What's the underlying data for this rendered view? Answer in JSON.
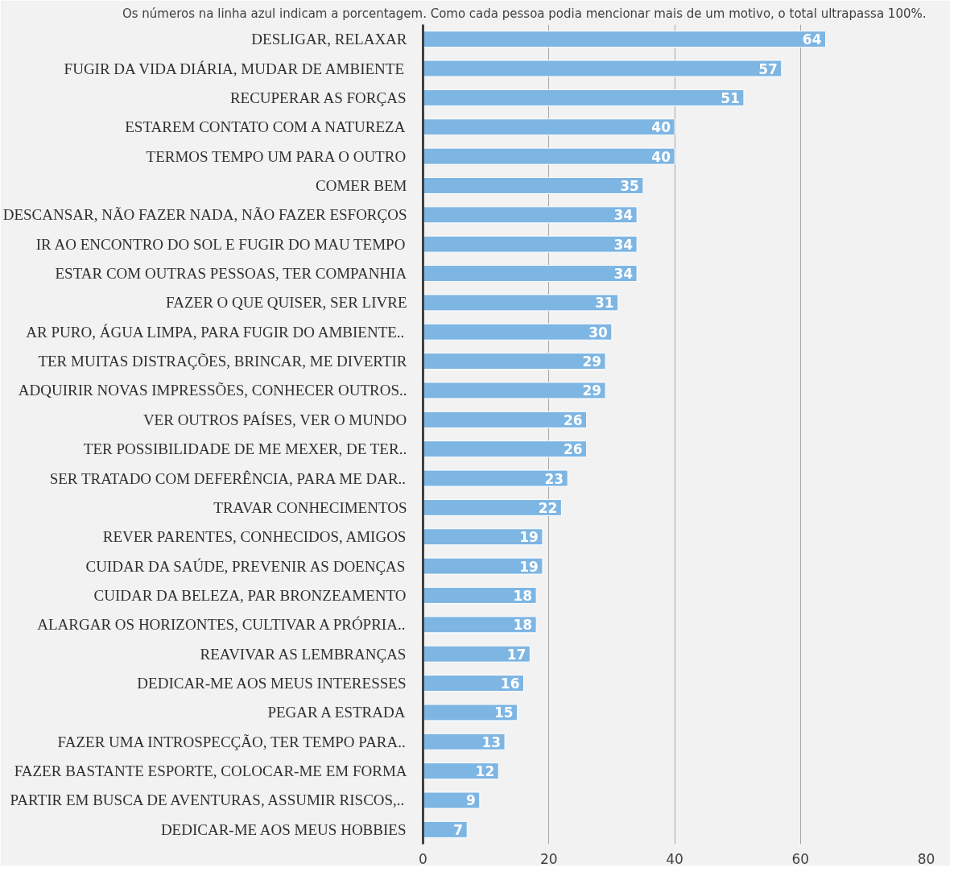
{
  "chart_data": {
    "type": "bar",
    "orientation": "horizontal",
    "title": "Os números na linha azul indicam a porcentagem. Como cada pessoa podia mencionar mais de um motivo, o total ultrapassa 100%.",
    "categories": [
      "DESLIGAR, RELAXAR",
      "FUGIR DA VIDA DIÁRIA, MUDAR DE AMBIENTE",
      "RECUPERAR AS FORÇAS",
      "ESTAREM CONTATO COM A NATUREZA",
      "TERMOS TEMPO UM PARA O OUTRO",
      "COMER BEM",
      "DESCANSAR, NÃO FAZER NADA, NÃO FAZER ESFORÇOS",
      "IR AO ENCONTRO DO SOL E FUGIR DO MAU TEMPO",
      "ESTAR COM OUTRAS PESSOAS, TER COMPANHIA",
      "FAZER O QUE QUISER, SER LIVRE",
      "AR PURO, ÁGUA LIMPA, PARA FUGIR DO AMBIENTE..",
      "TER MUITAS DISTRAÇÕES, BRINCAR, ME DIVERTIR",
      "ADQUIRIR NOVAS IMPRESSÕES, CONHECER OUTROS..",
      "VER OUTROS PAÍSES, VER O MUNDO",
      "TER POSSIBILIDADE DE ME MEXER, DE TER..",
      "SER TRATADO COM DEFERÊNCIA, PARA ME DAR..",
      "TRAVAR CONHECIMENTOS",
      "REVER PARENTES, CONHECIDOS, AMIGOS",
      "CUIDAR DA SAÚDE, PREVENIR AS DOENÇAS",
      "CUIDAR DA BELEZA, PAR BRONZEAMENTO",
      "ALARGAR OS HORIZONTES, CULTIVAR A PRÓPRIA..",
      "REAVIVAR AS LEMBRANÇAS",
      "DEDICAR-ME AOS MEUS INTERESSES",
      "PEGAR A ESTRADA",
      "FAZER UMA INTROSPECÇÃO, TER TEMPO PARA..",
      "FAZER BASTANTE ESPORTE, COLOCAR-ME EM FORMA",
      "PARTIR EM BUSCA DE AVENTURAS, ASSUMIR RISCOS,..",
      "DEDICAR-ME AOS MEUS HOBBIES"
    ],
    "values": [
      64,
      57,
      51,
      40,
      40,
      35,
      34,
      34,
      34,
      31,
      30,
      29,
      29,
      26,
      26,
      23,
      22,
      19,
      19,
      18,
      18,
      17,
      16,
      15,
      13,
      12,
      9,
      7
    ],
    "color": "#7db5e3",
    "xlim": [
      0,
      80
    ],
    "xticks": [
      0,
      20,
      40,
      60,
      80
    ],
    "grid": "x",
    "data_labels": true
  }
}
